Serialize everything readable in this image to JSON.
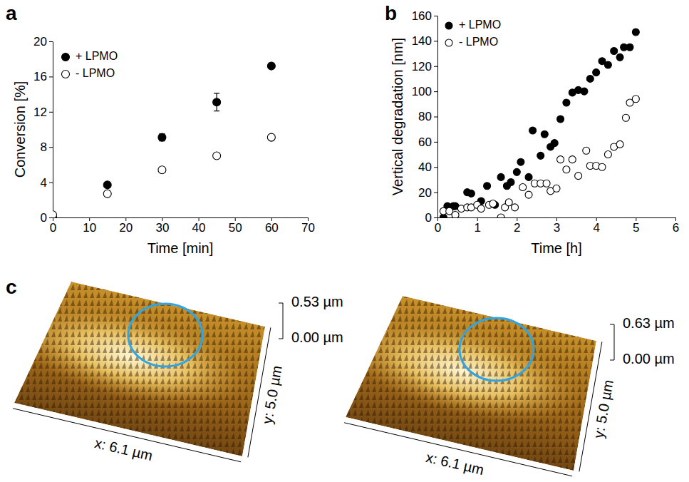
{
  "chart_data": [
    {
      "type": "scatter",
      "panel_label": "a",
      "x_label": "Time [min]",
      "y_label": "Conversion [%]",
      "xlim": [
        0,
        70
      ],
      "ylim": [
        0,
        20
      ],
      "xticks": [
        0,
        10,
        20,
        30,
        40,
        50,
        60,
        70
      ],
      "yticks": [
        0,
        4,
        8,
        12,
        16,
        20
      ],
      "legend": "upper left",
      "series": [
        {
          "name": "+ LPMO",
          "color": "#000000",
          "marker": "circle",
          "x": [
            0,
            15,
            30,
            45,
            60
          ],
          "values": [
            0,
            3.7,
            9.1,
            13.1,
            17.2
          ],
          "errors": [
            0,
            0.1,
            0.4,
            1.0,
            0.1
          ]
        },
        {
          "name": "- LPMO",
          "color": "#000000",
          "marker": "circle-open",
          "x": [
            0,
            15,
            30,
            45,
            60
          ],
          "values": [
            0.3,
            2.7,
            5.4,
            7.0,
            9.1
          ]
        }
      ]
    },
    {
      "type": "scatter",
      "panel_label": "b",
      "x_label": "Time [h]",
      "y_label": "Vertical degradation [nm]",
      "xlim": [
        0,
        6
      ],
      "ylim": [
        0,
        160
      ],
      "xticks": [
        0,
        1,
        2,
        3,
        4,
        5,
        6
      ],
      "yticks": [
        0,
        20,
        40,
        60,
        80,
        100,
        120,
        140,
        160
      ],
      "legend": "upper left",
      "series": [
        {
          "name": "+ LPMO",
          "color": "#000000",
          "marker": "circle",
          "x": [
            0.15,
            0.25,
            0.4,
            0.45,
            0.75,
            0.85,
            1.1,
            1.25,
            1.45,
            1.6,
            1.75,
            1.85,
            2.0,
            2.1,
            2.3,
            2.4,
            2.6,
            2.7,
            2.85,
            2.95,
            3.1,
            3.25,
            3.4,
            3.55,
            3.7,
            3.85,
            4.0,
            4.15,
            4.3,
            4.45,
            4.6,
            4.7,
            4.85,
            5.0
          ],
          "values": [
            0,
            9,
            9,
            9,
            20,
            19,
            13,
            25,
            10,
            32,
            25,
            28,
            36,
            44,
            32,
            69,
            49,
            66,
            56,
            59,
            78,
            91,
            99,
            101,
            100,
            110,
            115,
            124,
            121,
            132,
            127,
            135,
            135,
            147
          ]
        },
        {
          "name": "- LPMO",
          "color": "#000000",
          "marker": "circle-open",
          "x": [
            0.15,
            0.3,
            0.45,
            0.6,
            0.75,
            0.85,
            1.0,
            1.1,
            1.3,
            1.4,
            1.6,
            1.7,
            1.8,
            1.95,
            2.15,
            2.3,
            2.45,
            2.6,
            2.75,
            2.85,
            3.0,
            3.1,
            3.25,
            3.4,
            3.55,
            3.75,
            3.85,
            4.0,
            4.15,
            4.3,
            4.45,
            4.6,
            4.75,
            4.85,
            5.0
          ],
          "values": [
            5,
            5,
            2,
            7,
            8,
            8,
            10,
            7,
            10,
            11,
            0,
            8,
            12,
            8,
            24,
            18,
            27,
            27,
            27,
            21,
            23,
            46,
            38,
            46,
            33,
            53,
            41,
            41,
            40,
            50,
            56,
            58,
            79,
            91,
            94
          ]
        }
      ]
    },
    {
      "type": "surface",
      "panel_label": "c",
      "images": [
        {
          "x_label": "x: 6.1 µm",
          "y_label": "y: 5.0 µm",
          "zlim": [
            0,
            0.53
          ],
          "zticks": [
            {
              "value": 0,
              "label": "0.00 µm"
            },
            {
              "value": 0.53,
              "label": "0.53 µm"
            }
          ]
        },
        {
          "x_label": "x: 6.1 µm",
          "y_label": "y: 5.0 µm",
          "zlim": [
            0,
            0.63
          ],
          "zticks": [
            {
              "value": 0,
              "label": "0.00 µm"
            },
            {
              "value": 0.63,
              "label": "0.63 µm"
            }
          ]
        }
      ]
    }
  ]
}
